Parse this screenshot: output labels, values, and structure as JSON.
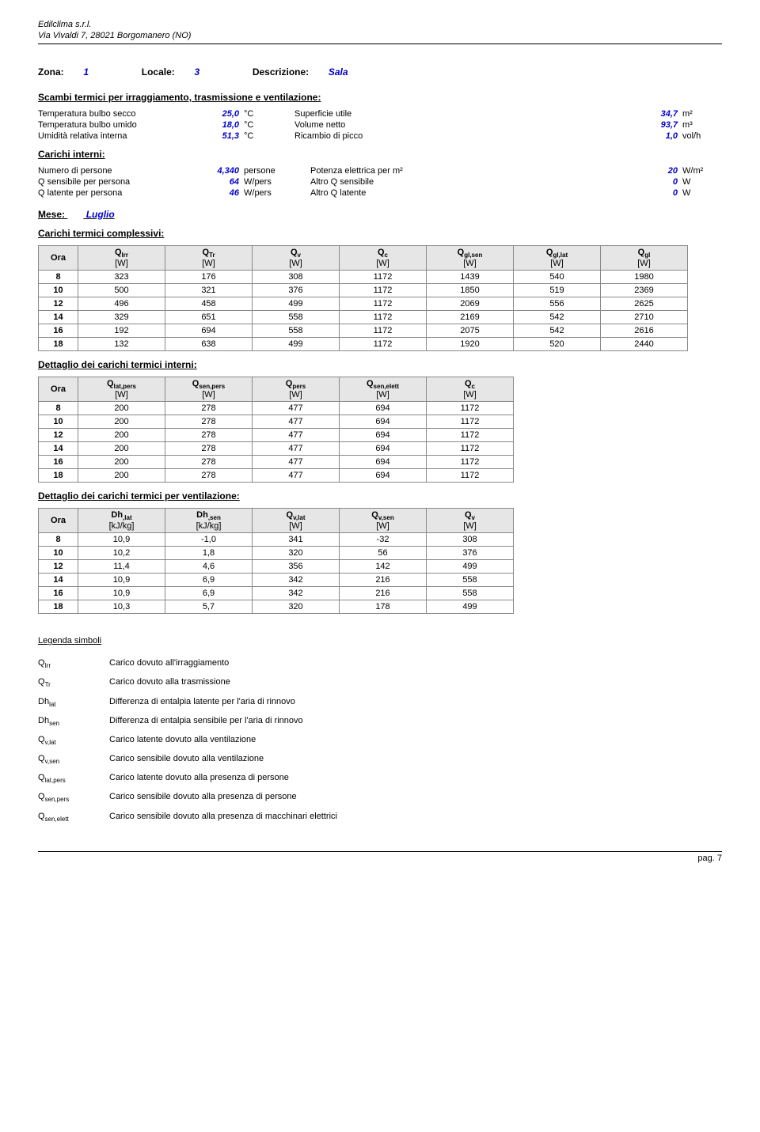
{
  "header": {
    "line1": "Edilclima s.r.l.",
    "line2": "Via Vivaldi 7, 28021 Borgomanero (NO)"
  },
  "zone": {
    "zona_lbl": "Zona:",
    "zona_val": "1",
    "locale_lbl": "Locale:",
    "locale_val": "3",
    "descr_lbl": "Descrizione:",
    "descr_val": "Sala"
  },
  "scambi_title": "Scambi termici per irraggiamento, trasmissione e ventilazione:",
  "kv1": {
    "r1": {
      "l": "Temperatura bulbo secco",
      "v": "25,0",
      "u": "°C",
      "r": "Superficie utile",
      "rv": "34,7",
      "ru": "m²"
    },
    "r2": {
      "l": "Temperatura bulbo umido",
      "v": "18,0",
      "u": "°C",
      "r": "Volume netto",
      "rv": "93,7",
      "ru": "m³"
    },
    "r3": {
      "l": "Umidità relativa interna",
      "v": "51,3",
      "u": "°C",
      "r": "Ricambio di picco",
      "rv": "1,0",
      "ru": "vol/h"
    }
  },
  "carichi_interni_title": "Carichi interni:",
  "kv2": {
    "r1": {
      "l": "Numero di persone",
      "v": "4,340",
      "u": "persone",
      "r": "Potenza elettrica per m²",
      "rv": "20",
      "ru": "W/m²"
    },
    "r2": {
      "l": "Q sensibile per persona",
      "v": "64",
      "u": "W/pers",
      "r": "Altro Q sensibile",
      "rv": "0",
      "ru": "W"
    },
    "r3": {
      "l": "Q latente per persona",
      "v": "46",
      "u": "W/pers",
      "r": "Altro Q latente",
      "rv": "0",
      "ru": "W"
    }
  },
  "mese_lbl": "Mese:",
  "mese_val": "Luglio",
  "carichi_complessivi_title": "Carichi termici complessivi:",
  "table1": {
    "headers": [
      "Ora",
      "QIrr",
      "QTr",
      "Qv",
      "Qc",
      "Qgl,sen",
      "Qgl,lat",
      "Qgl"
    ],
    "unit": "[W]",
    "rows": [
      [
        "8",
        "323",
        "176",
        "308",
        "1172",
        "1439",
        "540",
        "1980"
      ],
      [
        "10",
        "500",
        "321",
        "376",
        "1172",
        "1850",
        "519",
        "2369"
      ],
      [
        "12",
        "496",
        "458",
        "499",
        "1172",
        "2069",
        "556",
        "2625"
      ],
      [
        "14",
        "329",
        "651",
        "558",
        "1172",
        "2169",
        "542",
        "2710"
      ],
      [
        "16",
        "192",
        "694",
        "558",
        "1172",
        "2075",
        "542",
        "2616"
      ],
      [
        "18",
        "132",
        "638",
        "499",
        "1172",
        "1920",
        "520",
        "2440"
      ]
    ]
  },
  "dett_interni_title": "Dettaglio dei carichi termici interni:",
  "table2": {
    "headers": [
      "Ora",
      "Qlat,pers",
      "Qsen,pers",
      "Qpers",
      "Qsen,elett",
      "Qc"
    ],
    "unit": "[W]",
    "rows": [
      [
        "8",
        "200",
        "278",
        "477",
        "694",
        "1172"
      ],
      [
        "10",
        "200",
        "278",
        "477",
        "694",
        "1172"
      ],
      [
        "12",
        "200",
        "278",
        "477",
        "694",
        "1172"
      ],
      [
        "14",
        "200",
        "278",
        "477",
        "694",
        "1172"
      ],
      [
        "16",
        "200",
        "278",
        "477",
        "694",
        "1172"
      ],
      [
        "18",
        "200",
        "278",
        "477",
        "694",
        "1172"
      ]
    ]
  },
  "dett_vent_title": "Dettaglio dei carichi termici per ventilazione:",
  "table3": {
    "headers": [
      "Ora",
      "Dh,lat",
      "Dh,sen",
      "Qv,lat",
      "Qv,sen",
      "Qv"
    ],
    "units": [
      "",
      "[kJ/kg]",
      "[kJ/kg]",
      "[W]",
      "[W]",
      "[W]"
    ],
    "rows": [
      [
        "8",
        "10,9",
        "-1,0",
        "341",
        "-32",
        "308"
      ],
      [
        "10",
        "10,2",
        "1,8",
        "320",
        "56",
        "376"
      ],
      [
        "12",
        "11,4",
        "4,6",
        "356",
        "142",
        "499"
      ],
      [
        "14",
        "10,9",
        "6,9",
        "342",
        "216",
        "558"
      ],
      [
        "16",
        "10,9",
        "6,9",
        "342",
        "216",
        "558"
      ],
      [
        "18",
        "10,3",
        "5,7",
        "320",
        "178",
        "499"
      ]
    ]
  },
  "legend_title": "Legenda simboli",
  "legend": [
    {
      "s": "QIrr",
      "d": "Carico dovuto all'irraggiamento"
    },
    {
      "s": "QTr",
      "d": "Carico dovuto alla trasmissione"
    },
    {
      "s": "Dhlat",
      "d": "Differenza di entalpia latente per l'aria di rinnovo"
    },
    {
      "s": "Dhsen",
      "d": "Differenza di entalpia sensibile per l'aria di rinnovo"
    },
    {
      "s": "Qv,lat",
      "d": "Carico latente dovuto alla ventilazione"
    },
    {
      "s": "Qv,sen",
      "d": "Carico sensibile dovuto alla ventilazione"
    },
    {
      "s": "Qlat,pers",
      "d": "Carico latente dovuto alla presenza di persone"
    },
    {
      "s": "Qsen,pers",
      "d": "Carico sensibile dovuto alla presenza di persone"
    },
    {
      "s": "Qsen,elett",
      "d": "Carico sensibile dovuto alla presenza di macchinari elettrici"
    }
  ],
  "footer": "pag. 7"
}
